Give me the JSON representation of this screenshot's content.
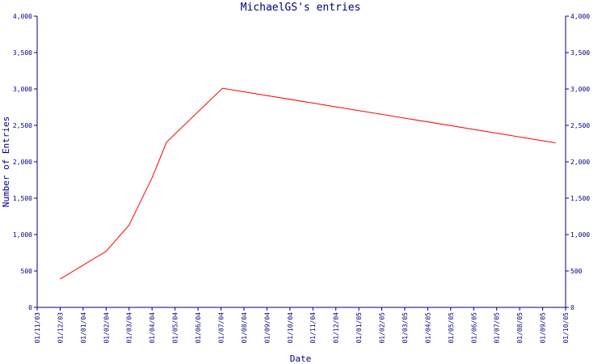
{
  "chart_data": {
    "type": "line",
    "title": "MichaelGS's entries",
    "xlabel": "Date",
    "ylabel": "Number of Entries",
    "ylim": [
      0,
      4000
    ],
    "y_ticks": [
      "0",
      "500",
      "1,000",
      "1,500",
      "2,000",
      "2,500",
      "3,000",
      "3,500",
      "4,000"
    ],
    "x_ticks": [
      "01/11/03",
      "01/12/03",
      "01/01/04",
      "01/02/04",
      "01/03/04",
      "01/04/04",
      "01/05/04",
      "01/06/04",
      "01/07/04",
      "01/08/04",
      "01/09/04",
      "01/10/04",
      "01/11/04",
      "01/12/04",
      "01/01/05",
      "01/02/05",
      "01/03/05",
      "01/04/05",
      "01/05/05",
      "01/06/05",
      "01/07/05",
      "01/08/05",
      "01/09/05",
      "01/10/05"
    ],
    "grid": false,
    "series": [
      {
        "x": [
          "2003-12-01",
          "2004-02-01",
          "2004-03-01",
          "2004-04-01",
          "2004-04-20",
          "2004-07-03",
          "2005-09-18"
        ],
        "y": [
          390,
          770,
          1130,
          1780,
          2270,
          3010,
          2260
        ]
      }
    ],
    "colors": {
      "axis": "#000080",
      "line": "#ff0000",
      "text": "#000080"
    }
  }
}
